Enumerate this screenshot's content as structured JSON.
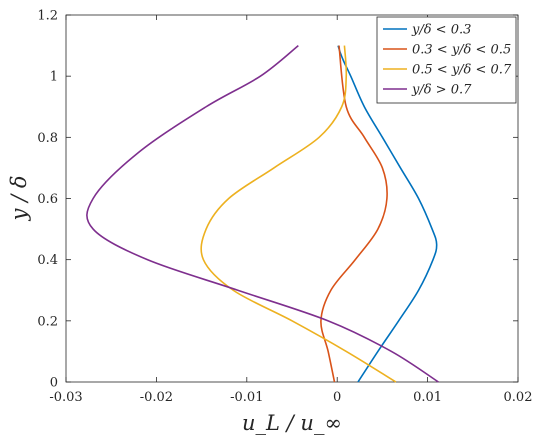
{
  "chart_data": {
    "type": "line",
    "title": "",
    "xlabel": "u_L / u_∞",
    "ylabel": "y / δ",
    "xlim": [
      -0.03,
      0.02
    ],
    "ylim": [
      0,
      1.2
    ],
    "xticks": [
      -0.03,
      -0.02,
      -0.01,
      0,
      0.01,
      0.02
    ],
    "xtick_labels": [
      "-0.03",
      "-0.02",
      "-0.01",
      "0",
      "0.01",
      "0.02"
    ],
    "yticks": [
      0,
      0.2,
      0.4,
      0.6,
      0.8,
      1.0,
      1.2
    ],
    "ytick_labels": [
      "0",
      "0.2",
      "0.4",
      "0.6",
      "0.8",
      "1",
      "1.2"
    ],
    "grid": false,
    "legend_position": "top-right",
    "series": [
      {
        "name": "y/δ < 0.3",
        "color": "#0072BD",
        "x": [
          0.0023,
          0.0045,
          0.0068,
          0.009,
          0.0106,
          0.011,
          0.0105,
          0.009,
          0.007,
          0.005,
          0.003,
          0.0015,
          0.0007,
          0.0003,
          0.0001
        ],
        "y": [
          0.0,
          0.1,
          0.2,
          0.3,
          0.4,
          0.45,
          0.5,
          0.6,
          0.7,
          0.8,
          0.9,
          1.0,
          1.05,
          1.08,
          1.1
        ]
      },
      {
        "name": "0.3 < y/δ < 0.5",
        "color": "#D95319",
        "x": [
          -0.0003,
          -0.001,
          -0.0018,
          -0.0007,
          0.002,
          0.0045,
          0.0055,
          0.005,
          0.003,
          0.001,
          0.0002
        ],
        "y": [
          0.0,
          0.1,
          0.2,
          0.3,
          0.4,
          0.5,
          0.6,
          0.7,
          0.8,
          0.9,
          1.1
        ]
      },
      {
        "name": "0.5 < y/δ < 0.7",
        "color": "#EDB120",
        "x": [
          0.0065,
          0.001,
          -0.005,
          -0.0115,
          -0.0148,
          -0.0145,
          -0.012,
          -0.007,
          -0.002,
          0.0005,
          0.001,
          0.0008
        ],
        "y": [
          0.0,
          0.1,
          0.2,
          0.3,
          0.4,
          0.5,
          0.6,
          0.7,
          0.8,
          0.9,
          1.0,
          1.1
        ]
      },
      {
        "name": "y/δ > 0.7",
        "color": "#7E2F8E",
        "x": [
          0.0112,
          0.006,
          -0.001,
          -0.011,
          -0.021,
          -0.027,
          -0.027,
          -0.022,
          -0.0145,
          -0.0085,
          -0.0043
        ],
        "y": [
          0.0,
          0.1,
          0.2,
          0.3,
          0.4,
          0.5,
          0.6,
          0.75,
          0.9,
          1.0,
          1.1
        ]
      }
    ]
  }
}
